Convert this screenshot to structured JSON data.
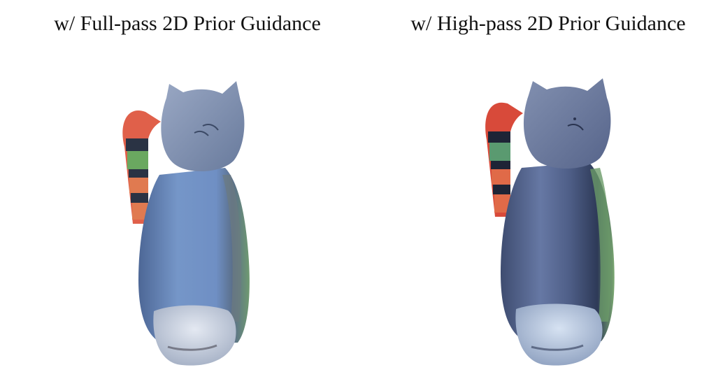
{
  "panels": [
    {
      "caption": "w/ Full-pass 2D Prior Guidance",
      "image_subject": "cat-figurine-render",
      "colors": {
        "body": "#6f8fc4",
        "body_dark": "#4a5f8a",
        "head": "#7f8fb0",
        "base": "#cdd6e6",
        "tail_top": "#e0604a",
        "tail_stripe_dark": "#2a3344",
        "tail_stripe_green": "#6aa860",
        "tail_stripe_orange": "#e07a50"
      }
    },
    {
      "caption": "w/ High-pass 2D Prior Guidance",
      "image_subject": "cat-figurine-render",
      "colors": {
        "body": "#5c6e98",
        "body_dark": "#2e3a58",
        "head": "#6a7898",
        "base": "#b8c8e0",
        "tail_top": "#d84a3a",
        "tail_stripe_dark": "#1e2436",
        "tail_stripe_green": "#5a9a70",
        "tail_stripe_orange": "#e06a48"
      }
    }
  ]
}
